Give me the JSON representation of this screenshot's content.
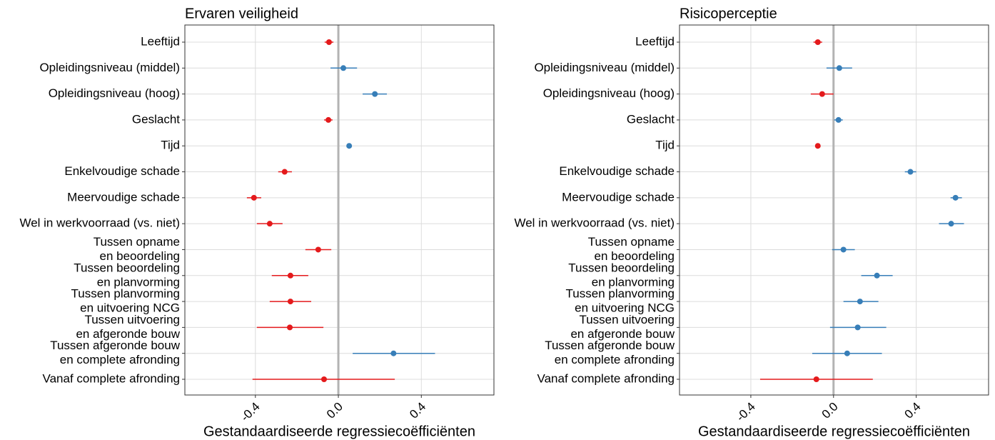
{
  "chart_data": [
    {
      "type": "coefficient",
      "title": "Ervaren veiligheid",
      "x_label": "Gestandaardiseerde regressiecoëfficiënten",
      "categories": [
        "Leeftijd",
        "Opleidingsniveau (middel)",
        "Opleidingsniveau (hoog)",
        "Geslacht",
        "Tijd",
        "Enkelvoudige schade",
        "Meervoudige schade",
        "Wel in werkvoorraad (vs. niet)",
        [
          "Tussen opname",
          "en beoordeling"
        ],
        [
          "Tussen beoordeling",
          "en planvorming"
        ],
        [
          "Tussen planvorming",
          "en uitvoering NCG"
        ],
        [
          "Tussen uitvoering",
          "en afgeronde bouw"
        ],
        [
          "Tussen afgeronde bouw",
          "en complete afronding"
        ],
        "Vanaf complete afronding"
      ],
      "values": [
        -0.045,
        0.024,
        0.176,
        -0.048,
        0.052,
        -0.259,
        -0.407,
        -0.331,
        -0.097,
        -0.231,
        -0.231,
        -0.234,
        0.266,
        -0.069
      ],
      "lower": [
        -0.066,
        -0.038,
        0.117,
        -0.069,
        0.041,
        -0.29,
        -0.441,
        -0.393,
        -0.159,
        -0.321,
        -0.331,
        -0.393,
        0.069,
        -0.414
      ],
      "upper": [
        -0.024,
        0.09,
        0.234,
        -0.028,
        0.062,
        -0.224,
        -0.372,
        -0.269,
        -0.034,
        -0.145,
        -0.131,
        -0.072,
        0.466,
        0.272
      ],
      "color_negative": "#e41a1c",
      "color_positive": "#377eb8",
      "xlim": [
        -0.74,
        0.75
      ],
      "xticks": [
        -0.4,
        {
          "value": 0,
          "label": "0.0"
        },
        0.4
      ],
      "grid": true
    },
    {
      "type": "coefficient",
      "title": "Risicoperceptie",
      "x_label": "Gestandaardiseerde regressiecoëfficiënten",
      "categories": [
        "Leeftijd",
        "Opleidingsniveau (middel)",
        "Opleidingsniveau (hoog)",
        "Geslacht",
        "Tijd",
        "Enkelvoudige schade",
        "Meervoudige schade",
        "Wel in werkvoorraad (vs. niet)",
        [
          "Tussen opname",
          "en beoordeling"
        ],
        [
          "Tussen beoordeling",
          "en planvorming"
        ],
        [
          "Tussen planvorming",
          "en uitvoering NCG"
        ],
        [
          "Tussen uitvoering",
          "en afgeronde bouw"
        ],
        [
          "Tussen afgeronde bouw",
          "en complete afronding"
        ],
        "Vanaf complete afronding"
      ],
      "values": [
        -0.076,
        0.028,
        -0.055,
        0.024,
        -0.076,
        0.372,
        0.59,
        0.569,
        0.048,
        0.21,
        0.128,
        0.117,
        0.066,
        -0.083
      ],
      "lower": [
        -0.097,
        -0.034,
        -0.11,
        0.003,
        -0.086,
        0.345,
        0.566,
        0.51,
        -0.007,
        0.134,
        0.048,
        -0.017,
        -0.103,
        -0.355
      ],
      "upper": [
        -0.055,
        0.09,
        0.0,
        0.045,
        -0.066,
        0.4,
        0.621,
        0.631,
        0.103,
        0.286,
        0.217,
        0.255,
        0.234,
        0.19
      ],
      "color_negative": "#e41a1c",
      "color_positive": "#377eb8",
      "xlim": [
        -0.745,
        0.75
      ],
      "xticks": [
        -0.4,
        {
          "value": 0,
          "label": "0.0"
        },
        0.4
      ],
      "grid": true
    }
  ]
}
